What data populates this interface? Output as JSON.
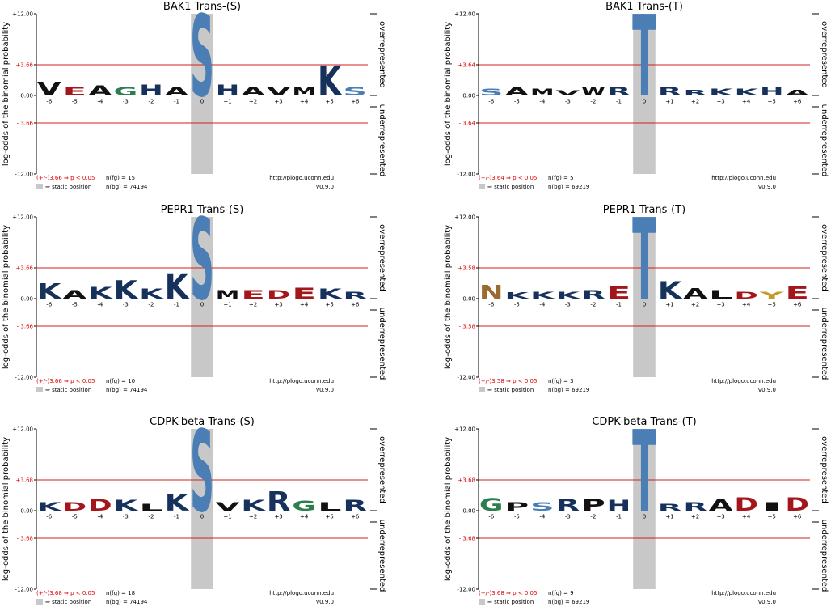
{
  "labels": {
    "ylabel": "log-odds of the binomial probability",
    "over": "overrepresented",
    "under": "underrepresented"
  },
  "residue_colors": {
    "K": "#16325c",
    "R": "#16325c",
    "H": "#16325c",
    "D": "#a3161c",
    "E": "#a3161c",
    "S": "#4a7eb5",
    "T": "#4a7eb5",
    "N": "#9a6a2e",
    "Q": "#9a6a2e",
    "G": "#2e7d4f",
    "A": "#111111",
    "V": "#111111",
    "L": "#111111",
    "I": "#111111",
    "M": "#111111",
    "P": "#111111",
    "W": "#111111",
    "F": "#111111",
    "Y": "#c49a2a",
    "C": "#c49a2a"
  },
  "chart_data": [
    {
      "type": "logo",
      "title": "BAK1 Trans-(S)",
      "categories": [
        "-6",
        "-5",
        "-4",
        "-3",
        "-2",
        "-1",
        "0",
        "+1",
        "+2",
        "+3",
        "+4",
        "+5",
        "+6"
      ],
      "letters": [
        "V",
        "E",
        "A",
        "G",
        "H",
        "A",
        "S",
        "H",
        "A",
        "V",
        "M",
        "K",
        "S"
      ],
      "values": [
        1.6,
        1.0,
        1.2,
        1.0,
        1.3,
        1.0,
        12,
        1.3,
        1.0,
        1.0,
        1.0,
        3.6,
        1.0
      ],
      "ylim": [
        -12,
        12
      ],
      "yticks": [
        {
          "value": 12,
          "label": "+12.00"
        },
        {
          "value": 3.66,
          "label": "+3.66"
        },
        {
          "value": 0,
          "label": "0.00"
        },
        {
          "value": -3.66,
          "label": "- 3.66"
        },
        {
          "value": -12,
          "label": "-12.00"
        }
      ],
      "threshold_label": "(+/-)3.66 ⇒ p < 0.05",
      "n_fg": "n(fg) = 15",
      "url": "http://plogo.uconn.edu",
      "static_label": "⇒ static position",
      "n_bg": "n(bg) = 74194",
      "version": "v0.9.0"
    },
    {
      "type": "logo",
      "title": "BAK1 Trans-(T)",
      "categories": [
        "-6",
        "-5",
        "-4",
        "-3",
        "-2",
        "-1",
        "0",
        "+1",
        "+2",
        "+3",
        "+4",
        "+5",
        "+6"
      ],
      "letters": [
        "S",
        "A",
        "M",
        "V",
        "W",
        "R",
        "T",
        "R",
        "R",
        "K",
        "K",
        "H",
        "A"
      ],
      "values": [
        0.8,
        1.0,
        0.8,
        0.6,
        1.0,
        1.0,
        12,
        1.0,
        0.7,
        0.8,
        0.8,
        1.0,
        0.7
      ],
      "ylim": [
        -12,
        12
      ],
      "yticks": [
        {
          "value": 12,
          "label": "+12.00"
        },
        {
          "value": 3.64,
          "label": "+3.64"
        },
        {
          "value": 0,
          "label": "0.00"
        },
        {
          "value": -3.64,
          "label": "- 3.64"
        },
        {
          "value": -12,
          "label": "-12.00"
        }
      ],
      "threshold_label": "(+/-)3.64 ⇒ p < 0.05",
      "n_fg": "n(fg) = 5",
      "url": "http://plogo.uconn.edu",
      "static_label": "⇒ static position",
      "n_bg": "n(bg) = 69219",
      "version": "v0.9.0"
    },
    {
      "type": "logo",
      "title": "PEPR1 Trans-(S)",
      "categories": [
        "-6",
        "-5",
        "-4",
        "-3",
        "-2",
        "-1",
        "0",
        "+1",
        "+2",
        "+3",
        "+4",
        "+5",
        "+6"
      ],
      "letters": [
        "K",
        "A",
        "K",
        "K",
        "K",
        "K",
        "S",
        "M",
        "E",
        "D",
        "E",
        "K",
        "R"
      ],
      "values": [
        1.8,
        1.0,
        1.4,
        2.2,
        1.2,
        3.0,
        12,
        1.0,
        1.0,
        1.0,
        1.3,
        1.2,
        0.8
      ],
      "ylim": [
        -12,
        12
      ],
      "yticks": [
        {
          "value": 12,
          "label": "+12.00"
        },
        {
          "value": 3.66,
          "label": "+3.66"
        },
        {
          "value": 0,
          "label": "0.00"
        },
        {
          "value": -3.66,
          "label": "- 3.66"
        },
        {
          "value": -12,
          "label": "-12.00"
        }
      ],
      "threshold_label": "(+/-)3.66 ⇒ p < 0.05",
      "n_fg": "n(fg) = 10",
      "url": "http://plogo.uconn.edu",
      "static_label": "⇒ static position",
      "n_bg": "n(bg) = 74194",
      "version": "v0.9.0"
    },
    {
      "type": "logo",
      "title": "PEPR1 Trans-(T)",
      "categories": [
        "-6",
        "-5",
        "-4",
        "-3",
        "-2",
        "-1",
        "0",
        "+1",
        "+2",
        "+3",
        "+4",
        "+5",
        "+6"
      ],
      "letters": [
        "N",
        "K",
        "K",
        "K",
        "R",
        "E",
        "T",
        "K",
        "A",
        "L",
        "D",
        "Y",
        "E"
      ],
      "values": [
        1.6,
        0.7,
        0.8,
        0.8,
        1.0,
        1.4,
        12,
        2.0,
        1.2,
        1.0,
        0.8,
        0.8,
        1.4
      ],
      "ylim": [
        -12,
        12
      ],
      "yticks": [
        {
          "value": 12,
          "label": "+12.00"
        },
        {
          "value": 3.58,
          "label": "+3.58"
        },
        {
          "value": 0,
          "label": "0.00"
        },
        {
          "value": -3.58,
          "label": "- 3.58"
        },
        {
          "value": -12,
          "label": "-12.00"
        }
      ],
      "threshold_label": "(+/-)3.58 ⇒ p < 0.05",
      "n_fg": "n(fg) = 3",
      "url": "http://plogo.uconn.edu",
      "static_label": "⇒ static position",
      "n_bg": "n(bg) = 69219",
      "version": "v0.9.0"
    },
    {
      "type": "logo",
      "title": "CDPK-beta Trans-(S)",
      "categories": [
        "-6",
        "-5",
        "-4",
        "-3",
        "-2",
        "-1",
        "0",
        "+1",
        "+2",
        "+3",
        "+4",
        "+5",
        "+6"
      ],
      "letters": [
        "K",
        "D",
        "D",
        "K",
        "L",
        "K",
        "S",
        "V",
        "K",
        "R",
        "G",
        "L",
        "R"
      ],
      "values": [
        1.0,
        1.0,
        1.4,
        1.3,
        0.8,
        2.0,
        12,
        1.0,
        1.3,
        2.3,
        1.2,
        1.0,
        1.3
      ],
      "ylim": [
        -12,
        12
      ],
      "yticks": [
        {
          "value": 12,
          "label": "+12.00"
        },
        {
          "value": 3.68,
          "label": "+3.68"
        },
        {
          "value": 0,
          "label": "0.00"
        },
        {
          "value": -3.68,
          "label": "- 3.68"
        },
        {
          "value": -12,
          "label": "-12.00"
        }
      ],
      "threshold_label": "(+/-)3.68 ⇒ p < 0.05",
      "n_fg": "n(fg) = 18",
      "url": "http://plogo.uconn.edu",
      "static_label": "⇒ static position",
      "n_bg": "n(bg) = 74194",
      "version": "v0.9.0"
    },
    {
      "type": "logo",
      "title": "CDPK-beta Trans-(T)",
      "categories": [
        "-6",
        "-5",
        "-4",
        "-3",
        "-2",
        "-1",
        "0",
        "+1",
        "+2",
        "+3",
        "+4",
        "+5",
        "+6"
      ],
      "letters": [
        "G",
        "P",
        "S",
        "R",
        "P",
        "H",
        "T",
        "R",
        "R",
        "A",
        "D",
        "I",
        "D"
      ],
      "values": [
        1.5,
        1.0,
        1.0,
        1.4,
        1.4,
        1.3,
        12,
        0.8,
        1.0,
        1.4,
        1.6,
        1.0,
        1.6
      ],
      "ylim": [
        -12,
        12
      ],
      "yticks": [
        {
          "value": 12,
          "label": "+12.00"
        },
        {
          "value": 3.68,
          "label": "+3.68"
        },
        {
          "value": 0,
          "label": "0.00"
        },
        {
          "value": -3.68,
          "label": "- 3.68"
        },
        {
          "value": -12,
          "label": "-12.00"
        }
      ],
      "threshold_label": "(+/-)3.68 ⇒ p < 0.05",
      "n_fg": "n(fg) = 9",
      "url": "http://plogo.uconn.edu",
      "static_label": "⇒ static position",
      "n_bg": "n(bg) = 69219",
      "version": "v0.9.0"
    }
  ]
}
